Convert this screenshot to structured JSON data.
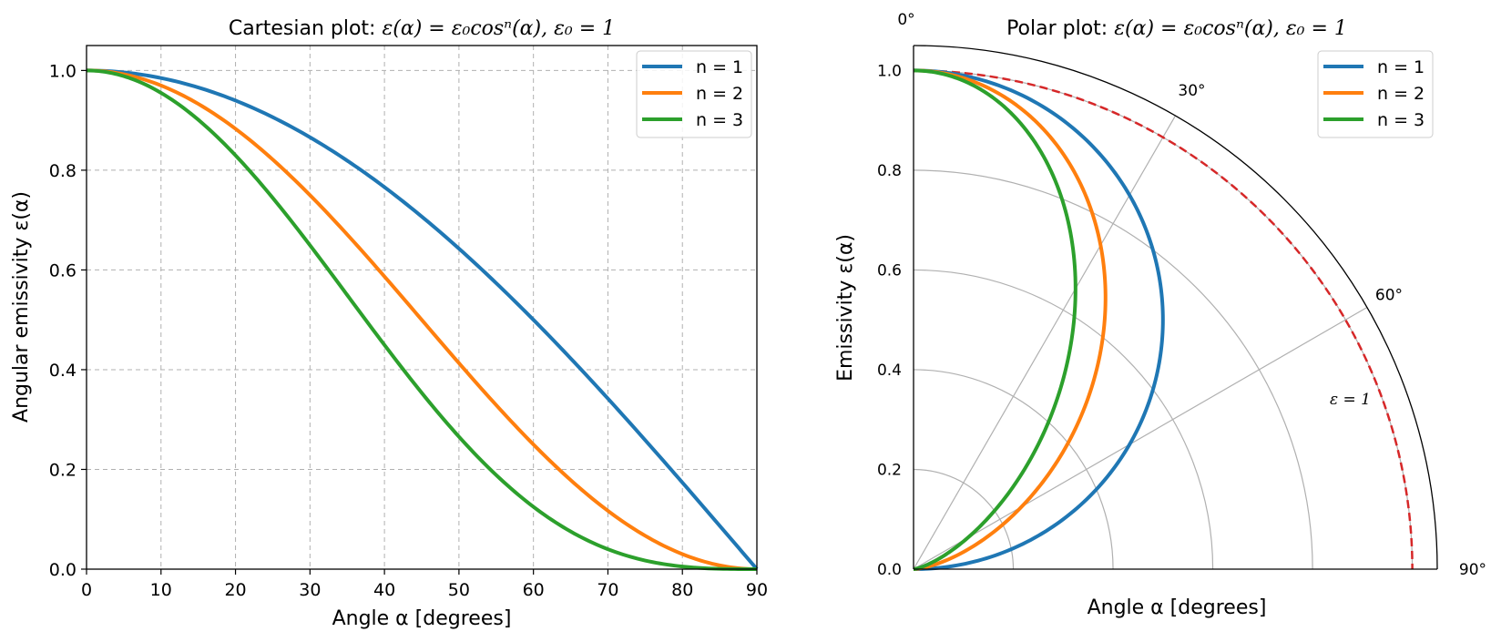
{
  "chart_data": [
    {
      "type": "line",
      "title_prefix": "Cartesian plot: ",
      "title_formula": "ε(α) = ε₀cosⁿ(α),  ε₀ = 1",
      "xlabel": "Angle α [degrees]",
      "ylabel": "Angular emissivity ε(α)",
      "xlim": [
        0,
        90
      ],
      "ylim": [
        0,
        1.05
      ],
      "xticks": [
        "0",
        "10",
        "20",
        "30",
        "40",
        "50",
        "60",
        "70",
        "80",
        "90"
      ],
      "yticks": [
        "0.0",
        "0.2",
        "0.4",
        "0.6",
        "0.8",
        "1.0"
      ],
      "grid": true,
      "legend_position": "top-right",
      "x": [
        0,
        10,
        20,
        30,
        40,
        50,
        60,
        70,
        80,
        90
      ],
      "series": [
        {
          "name": "n = 1",
          "n": 1,
          "color": "#1f77b4",
          "values": [
            1.0,
            0.985,
            0.94,
            0.866,
            0.766,
            0.643,
            0.5,
            0.342,
            0.174,
            0.0
          ]
        },
        {
          "name": "n = 2",
          "n": 2,
          "color": "#ff7f0e",
          "values": [
            1.0,
            0.97,
            0.883,
            0.75,
            0.587,
            0.413,
            0.25,
            0.117,
            0.03,
            0.0
          ]
        },
        {
          "name": "n = 3",
          "n": 3,
          "color": "#2ca02c",
          "values": [
            1.0,
            0.955,
            0.83,
            0.65,
            0.45,
            0.266,
            0.125,
            0.04,
            0.005,
            0.0
          ]
        }
      ]
    },
    {
      "type": "polar",
      "title_prefix": "Polar plot: ",
      "title_formula": "ε(α) = ε₀cosⁿ(α),  ε₀ = 1",
      "xlabel": "Angle α [degrees]",
      "ylabel": "Emissivity ε(α)",
      "rlim": [
        0,
        1.05
      ],
      "angle_range_deg": [
        0,
        90
      ],
      "rticks": [
        "0.0",
        "0.2",
        "0.4",
        "0.6",
        "0.8",
        "1.0"
      ],
      "angle_ticks": [
        "0°",
        "30°",
        "60°",
        "90°"
      ],
      "legend_position": "top-right",
      "annotation": "ε = 1",
      "reference": {
        "name": "ε = 1",
        "value": 1.0,
        "color": "#d62728",
        "style": "dashed"
      },
      "series": [
        {
          "name": "n = 1",
          "n": 1,
          "color": "#1f77b4"
        },
        {
          "name": "n = 2",
          "n": 2,
          "color": "#ff7f0e"
        },
        {
          "name": "n = 3",
          "n": 3,
          "color": "#2ca02c"
        }
      ]
    }
  ]
}
